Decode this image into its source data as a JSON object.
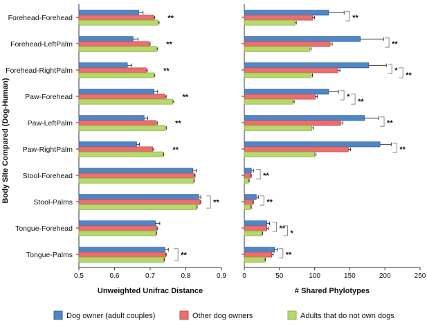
{
  "colors": {
    "dog_owner_couples": "#4f86c6",
    "other_dog_owners": "#ec6f6f",
    "non_dog_owners": "#b6d96b"
  },
  "y_axis_title": "Body Site Compared (Dog-Human)",
  "legend": [
    {
      "label": "Dog owner (adult couples)",
      "color": "#4f86c6"
    },
    {
      "label": "Other dog owners",
      "color": "#ec6f6f"
    },
    {
      "label": "Adults that do not own dogs",
      "color": "#b6d96b"
    }
  ],
  "chart_data": [
    {
      "type": "bar",
      "orientation": "horizontal",
      "xlabel": "Unweighted Unifrac Distance",
      "xlim": [
        0.5,
        0.9
      ],
      "xticks": [
        "0.5",
        "0.6",
        "0.7",
        "0.8",
        "0.9"
      ],
      "categories": [
        "Forehead-Forehead",
        "Forehead-LeftPalm",
        "Forehead-RightPalm",
        "Paw-Forehead",
        "Paw-LeftPalm",
        "Paw-RightPalm",
        "Stool-Forehead",
        "Stool-Palms",
        "Tongue-Forehead",
        "Tongue-Palms"
      ],
      "series": [
        {
          "name": "Dog owner (adult couples)",
          "values": [
            0.668,
            0.652,
            0.636,
            0.711,
            0.683,
            0.662,
            0.82,
            0.836,
            0.715,
            0.741
          ],
          "errors": [
            0.012,
            0.014,
            0.012,
            0.01,
            0.01,
            0.008,
            0.01,
            0.006,
            0.012,
            0.01
          ]
        },
        {
          "name": "Other dog owners",
          "values": [
            0.71,
            0.697,
            0.689,
            0.742,
            0.717,
            0.707,
            0.824,
            0.84,
            0.718,
            0.743
          ],
          "errors": [
            0.003,
            0.003,
            0.003,
            0.003,
            0.003,
            0.003,
            0.002,
            0.002,
            0.002,
            0.002
          ]
        },
        {
          "name": "Adults that do not own dogs",
          "values": [
            0.722,
            0.718,
            0.71,
            0.763,
            0.743,
            0.736,
            0.822,
            0.83,
            0.716,
            0.738
          ],
          "errors": [
            0.003,
            0.003,
            0.003,
            0.003,
            0.003,
            0.002,
            0.002,
            0.002,
            0.002,
            0.002
          ]
        }
      ],
      "annotations": [
        "**",
        "**",
        "**",
        "**",
        "**",
        "**",
        "",
        "**",
        "",
        "**"
      ]
    },
    {
      "type": "bar",
      "orientation": "horizontal",
      "xlabel": "# Shared Phylotypes",
      "xlim": [
        0,
        250
      ],
      "xticks": [
        "0",
        "50",
        "100",
        "150",
        "200",
        "250"
      ],
      "categories": [
        "Forehead-Forehead",
        "Forehead-LeftPalm",
        "Forehead-RightPalm",
        "Paw-Forehead",
        "Paw-LeftPalm",
        "Paw-RightPalm",
        "Stool-Forehead",
        "Stool-Palms",
        "Tongue-Forehead",
        "Tongue-Palms"
      ],
      "series": [
        {
          "name": "Dog owner (adult couples)",
          "values": [
            120,
            165,
            177,
            120,
            171,
            193,
            10,
            17,
            32,
            43
          ],
          "errors": [
            22,
            33,
            25,
            14,
            20,
            16,
            3,
            3,
            4,
            4
          ]
        },
        {
          "name": "Other dog owners",
          "values": [
            97,
            122,
            133,
            101,
            137,
            148,
            9,
            12,
            32,
            39
          ],
          "errors": [
            3,
            3,
            3,
            3,
            3,
            3,
            1,
            1,
            2,
            2
          ]
        },
        {
          "name": "Adults that do not own dogs",
          "values": [
            72,
            93,
            95,
            69,
            96,
            100,
            6,
            9,
            25,
            29
          ],
          "errors": [
            2,
            2,
            2,
            2,
            2,
            2,
            1,
            1,
            1,
            1
          ]
        }
      ],
      "annotations": [
        "**",
        "**",
        "* **",
        "* **",
        "**",
        "**",
        "**",
        "**",
        "** *",
        "**"
      ]
    }
  ]
}
